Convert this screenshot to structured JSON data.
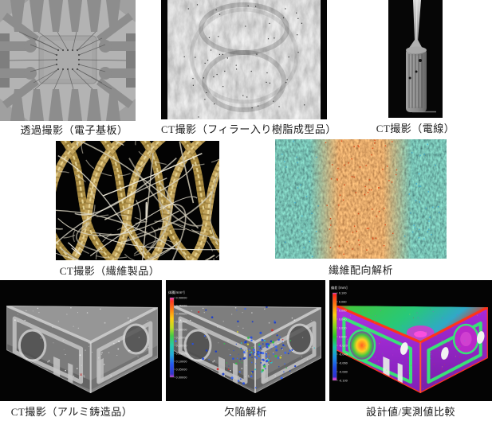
{
  "page": {
    "background": "#ffffff"
  },
  "figures": {
    "board": {
      "caption": "透過撮影（電子基板）"
    },
    "resin": {
      "caption": "CT撮影（フィラー入り樹脂成型品）"
    },
    "wire": {
      "caption": "CT撮影（電線）"
    },
    "fabric": {
      "caption": "CT撮影（繊維製品）"
    },
    "orientation": {
      "caption": "繊維配向解析"
    },
    "casting": {
      "caption": "CT撮影（アルミ鋳造品）",
      "marker": "×"
    },
    "defect": {
      "caption": "欠陥解析",
      "colorbar": {
        "title": "体積[mm³]",
        "labels": [
          "0.50000",
          "0.45000",
          "0.40000",
          "0.35000",
          "0.30000",
          "0.25000",
          "0.20000",
          "0.15000",
          "0.10000",
          "0.05000",
          "0.00000"
        ]
      }
    },
    "deviation": {
      "caption": "設計値/実測値比較",
      "colorbar": {
        "title": "偏差 [mm]",
        "labels": [
          "0.100",
          "0.080",
          "0.060",
          "0.040",
          "0.020",
          "0.000",
          "-0.020",
          "-0.040",
          "-0.060",
          "-0.080",
          "-0.100"
        ]
      }
    }
  },
  "colors": {
    "defect_dot_blue": "#2850e0",
    "defect_dot_green": "#2ec24a",
    "marker_red": "#c23a3a",
    "rim_red": "#ff3418",
    "frame_green": "#3ae078",
    "face_purple": "#9b30c8"
  }
}
